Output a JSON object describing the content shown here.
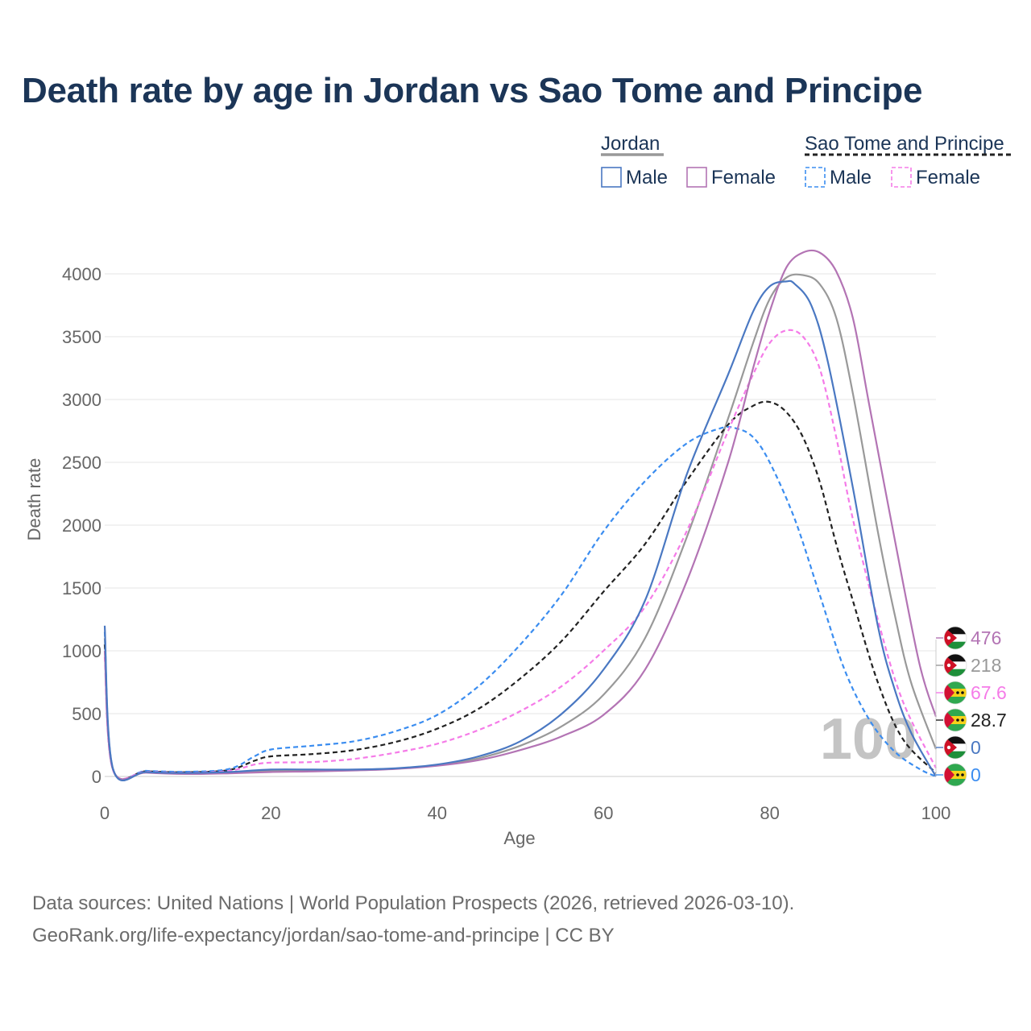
{
  "title": "Death rate by age in Jordan vs Sao Tome and Principe",
  "legend": {
    "groups": [
      {
        "country": "Jordan",
        "entries": [
          "Male",
          "Female"
        ]
      },
      {
        "country": "Sao Tome and Principe",
        "entries": [
          "Male",
          "Female"
        ]
      }
    ]
  },
  "footer": {
    "source": "Data sources: United Nations | World Population Prospects (2026, retrieved 2026-03-10).",
    "credit": "GeoRank.org/life-expectancy/jordan/sao-tome-and-principe | CC BY"
  },
  "colors": {
    "jordan_male": "#4a78c2",
    "jordan_female": "#b374b4",
    "jordan_total": "#999999",
    "stp_male": "#3b8df0",
    "stp_female": "#f57be8",
    "stp_total": "#222222",
    "title": "#1b3557",
    "axis_text": "#666666",
    "grid": "#e6e6e6"
  },
  "chart_data": {
    "type": "line",
    "title": "Death rate by age in Jordan vs Sao Tome and Principe",
    "xlabel": "Age",
    "ylabel": "Death rate",
    "xlim": [
      0,
      100
    ],
    "ylim": [
      0,
      4000
    ],
    "xticks": [
      0,
      20,
      40,
      60,
      80,
      100
    ],
    "yticks": [
      0,
      500,
      1000,
      1500,
      2000,
      2500,
      3000,
      3500,
      4000
    ],
    "grid": true,
    "legend_position": "top-right",
    "watermark": "100",
    "series": [
      {
        "key": "jordan_male",
        "name": "Jordan Male",
        "country": "Jordan",
        "dashed": false,
        "points": [
          [
            0,
            1200
          ],
          [
            1,
            60
          ],
          [
            5,
            35
          ],
          [
            10,
            28
          ],
          [
            15,
            35
          ],
          [
            20,
            55
          ],
          [
            25,
            55
          ],
          [
            30,
            55
          ],
          [
            35,
            65
          ],
          [
            40,
            95
          ],
          [
            45,
            160
          ],
          [
            50,
            280
          ],
          [
            55,
            500
          ],
          [
            60,
            850
          ],
          [
            65,
            1400
          ],
          [
            70,
            2400
          ],
          [
            75,
            3200
          ],
          [
            78,
            3700
          ],
          [
            80,
            3900
          ],
          [
            82,
            3940
          ],
          [
            83,
            3920
          ],
          [
            85,
            3750
          ],
          [
            87,
            3300
          ],
          [
            90,
            2300
          ],
          [
            93,
            1200
          ],
          [
            95,
            700
          ],
          [
            97,
            350
          ],
          [
            100,
            0
          ]
        ],
        "end_value": "0"
      },
      {
        "key": "jordan_female",
        "name": "Jordan Female",
        "country": "Jordan",
        "dashed": false,
        "points": [
          [
            0,
            1000
          ],
          [
            1,
            55
          ],
          [
            5,
            30
          ],
          [
            10,
            20
          ],
          [
            15,
            25
          ],
          [
            20,
            35
          ],
          [
            25,
            40
          ],
          [
            30,
            48
          ],
          [
            35,
            60
          ],
          [
            40,
            85
          ],
          [
            45,
            130
          ],
          [
            50,
            210
          ],
          [
            55,
            320
          ],
          [
            60,
            490
          ],
          [
            65,
            850
          ],
          [
            70,
            1550
          ],
          [
            75,
            2500
          ],
          [
            78,
            3250
          ],
          [
            80,
            3700
          ],
          [
            82,
            4050
          ],
          [
            84,
            4170
          ],
          [
            86,
            4170
          ],
          [
            88,
            4020
          ],
          [
            90,
            3650
          ],
          [
            92,
            2950
          ],
          [
            95,
            1900
          ],
          [
            98,
            900
          ],
          [
            100,
            476
          ]
        ],
        "end_value": "476"
      },
      {
        "key": "jordan_total",
        "name": "Jordan",
        "country": "Jordan",
        "dashed": false,
        "points": [
          [
            0,
            1100
          ],
          [
            1,
            57
          ],
          [
            5,
            33
          ],
          [
            10,
            24
          ],
          [
            15,
            30
          ],
          [
            20,
            45
          ],
          [
            25,
            48
          ],
          [
            30,
            52
          ],
          [
            35,
            62
          ],
          [
            40,
            90
          ],
          [
            45,
            145
          ],
          [
            50,
            245
          ],
          [
            55,
            400
          ],
          [
            60,
            650
          ],
          [
            65,
            1100
          ],
          [
            70,
            1900
          ],
          [
            75,
            2850
          ],
          [
            78,
            3450
          ],
          [
            80,
            3800
          ],
          [
            82,
            3970
          ],
          [
            84,
            3990
          ],
          [
            86,
            3920
          ],
          [
            88,
            3650
          ],
          [
            90,
            3050
          ],
          [
            93,
            1950
          ],
          [
            95,
            1300
          ],
          [
            97,
            750
          ],
          [
            100,
            218
          ]
        ],
        "end_value": "218"
      },
      {
        "key": "stp_male",
        "name": "Sao Tome and Principe Male",
        "country": "Sao Tome and Principe",
        "dashed": true,
        "points": [
          [
            0,
            1150
          ],
          [
            1,
            60
          ],
          [
            5,
            45
          ],
          [
            10,
            38
          ],
          [
            15,
            60
          ],
          [
            18,
            160
          ],
          [
            20,
            215
          ],
          [
            25,
            245
          ],
          [
            30,
            280
          ],
          [
            35,
            360
          ],
          [
            40,
            490
          ],
          [
            45,
            720
          ],
          [
            50,
            1050
          ],
          [
            55,
            1450
          ],
          [
            60,
            1950
          ],
          [
            65,
            2350
          ],
          [
            70,
            2650
          ],
          [
            74,
            2770
          ],
          [
            76,
            2770
          ],
          [
            78,
            2700
          ],
          [
            80,
            2500
          ],
          [
            83,
            2050
          ],
          [
            86,
            1450
          ],
          [
            89,
            850
          ],
          [
            92,
            450
          ],
          [
            95,
            200
          ],
          [
            98,
            60
          ],
          [
            100,
            0
          ]
        ],
        "end_value": "0"
      },
      {
        "key": "stp_female",
        "name": "Sao Tome and Principe Female",
        "country": "Sao Tome and Principe",
        "dashed": true,
        "points": [
          [
            0,
            950
          ],
          [
            1,
            50
          ],
          [
            5,
            38
          ],
          [
            10,
            30
          ],
          [
            15,
            45
          ],
          [
            18,
            95
          ],
          [
            20,
            110
          ],
          [
            25,
            115
          ],
          [
            30,
            140
          ],
          [
            35,
            190
          ],
          [
            40,
            260
          ],
          [
            45,
            370
          ],
          [
            50,
            520
          ],
          [
            55,
            720
          ],
          [
            60,
            1000
          ],
          [
            65,
            1350
          ],
          [
            70,
            1950
          ],
          [
            75,
            2750
          ],
          [
            78,
            3200
          ],
          [
            80,
            3450
          ],
          [
            82,
            3550
          ],
          [
            84,
            3500
          ],
          [
            86,
            3250
          ],
          [
            88,
            2700
          ],
          [
            90,
            2050
          ],
          [
            93,
            1250
          ],
          [
            96,
            600
          ],
          [
            100,
            67.6
          ]
        ],
        "end_value": "67.6"
      },
      {
        "key": "stp_total",
        "name": "Sao Tome and Principe",
        "country": "Sao Tome and Principe",
        "dashed": true,
        "points": [
          [
            0,
            1050
          ],
          [
            1,
            55
          ],
          [
            5,
            41
          ],
          [
            10,
            34
          ],
          [
            15,
            52
          ],
          [
            18,
            125
          ],
          [
            20,
            160
          ],
          [
            25,
            178
          ],
          [
            30,
            210
          ],
          [
            35,
            275
          ],
          [
            40,
            380
          ],
          [
            45,
            540
          ],
          [
            50,
            780
          ],
          [
            55,
            1080
          ],
          [
            60,
            1470
          ],
          [
            65,
            1850
          ],
          [
            70,
            2350
          ],
          [
            75,
            2800
          ],
          [
            78,
            2950
          ],
          [
            80,
            2980
          ],
          [
            82,
            2900
          ],
          [
            84,
            2700
          ],
          [
            86,
            2350
          ],
          [
            88,
            1850
          ],
          [
            90,
            1400
          ],
          [
            93,
            750
          ],
          [
            96,
            300
          ],
          [
            100,
            28.7
          ]
        ],
        "end_value": "28.7"
      }
    ]
  }
}
